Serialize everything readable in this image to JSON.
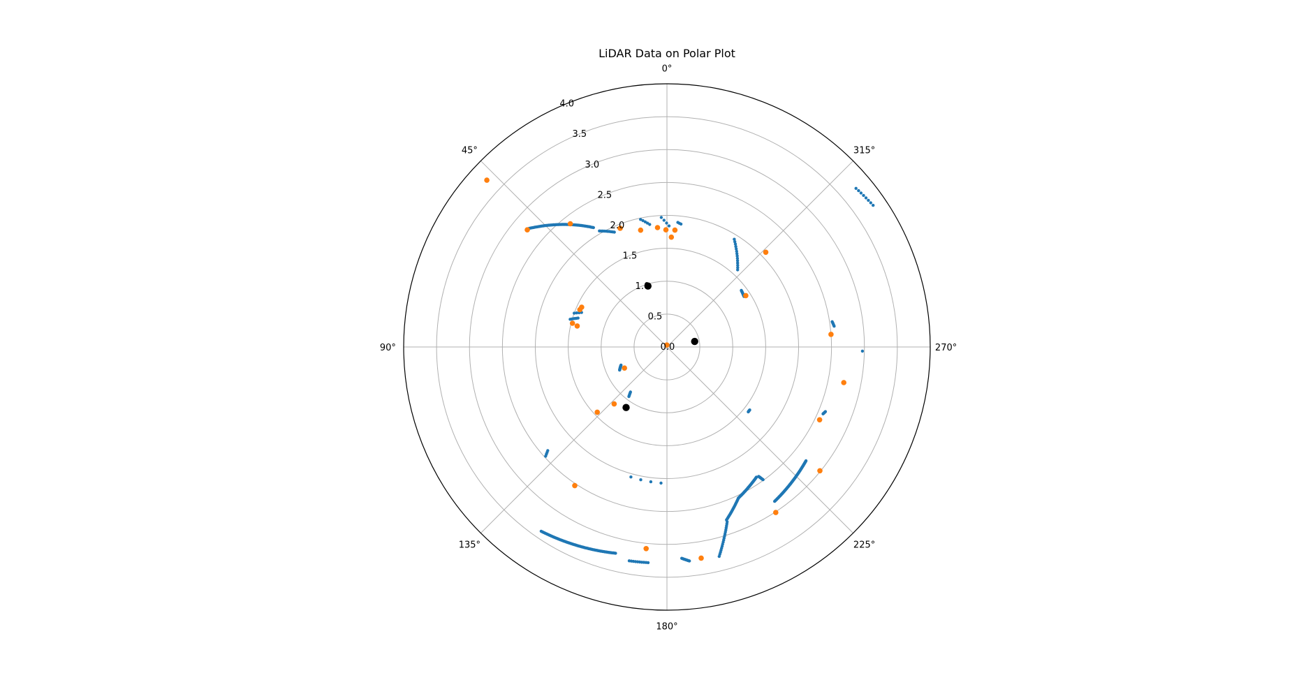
{
  "chart_data": {
    "type": "scatter",
    "projection": "polar",
    "title": "LiDAR Data on Polar Plot",
    "theta_zero_location": "N",
    "theta_direction": "counterclockwise",
    "rmax": 4.0,
    "r_ticks": [
      "0.0",
      "0.5",
      "1.0",
      "1.5",
      "2.0",
      "2.5",
      "3.0",
      "3.5",
      "4.0"
    ],
    "r_tick_values": [
      0,
      0.5,
      1.0,
      1.5,
      2.0,
      2.5,
      3.0,
      3.5,
      4.0
    ],
    "theta_ticks": [
      "0°",
      "45°",
      "90°",
      "135°",
      "180°",
      "225°",
      "270°",
      "315°"
    ],
    "theta_tick_values": [
      0,
      45,
      90,
      135,
      180,
      225,
      270,
      315
    ],
    "grid": true,
    "colors": {
      "scan": "#1f77b4",
      "features": "#ff7f0e",
      "markers": "#000000",
      "grid": "#b0b0b0",
      "frame": "#000000"
    },
    "series": [
      {
        "marker_size": 2.2,
        "segments": [
          {
            "theta": [
              49.5,
              31.6
            ],
            "r": [
              2.77,
              2.13
            ],
            "n": 55
          },
          {
            "theta": [
              30.2,
              24.6
            ],
            "r": [
              2.04,
              1.92
            ],
            "n": 10
          },
          {
            "theta": [
              11.7,
              8.0
            ],
            "r": [
              1.98,
              1.88
            ],
            "n": 5
          },
          {
            "theta": [
              2.5,
              -1.0
            ],
            "r": [
              1.97,
              1.84
            ],
            "n": 4
          },
          {
            "theta": [
              -5.0,
              -6.5
            ],
            "r": [
              1.9,
              1.88
            ],
            "n": 3
          },
          {
            "theta": [
              -32.0,
              -42.5
            ],
            "r": [
              1.93,
              1.59
            ],
            "n": 14
          },
          {
            "theta": [
              -52.7,
              -56.8
            ],
            "r": [
              1.42,
              1.4
            ],
            "n": 16
          },
          {
            "theta": [
              -50.0,
              -55.5
            ],
            "r": [
              3.75,
              3.8
            ],
            "n": 8
          },
          {
            "theta": [
              -81.3,
              -82.9
            ],
            "r": [
              2.54,
              2.56
            ],
            "n": 6
          },
          {
            "theta": [
              -91.2,
              -91.2
            ],
            "r": [
              2.97,
              2.97
            ],
            "n": 1
          },
          {
            "theta": [
              -112.2,
              -113.2
            ],
            "r": [
              2.6,
              2.58
            ],
            "n": 8
          },
          {
            "theta": [
              -129.3,
              -145.1
            ],
            "r": [
              2.73,
              2.86
            ],
            "n": 85
          },
          {
            "theta": [
              -144.1,
              -144.7
            ],
            "r": [
              2.49,
              2.41
            ],
            "n": 12
          },
          {
            "theta": [
              -145.5,
              -154.7
            ],
            "r": [
              2.4,
              2.54
            ],
            "n": 45
          },
          {
            "theta": [
              -154.7,
              -161.0
            ],
            "r": [
              2.54,
              2.78
            ],
            "n": 25
          },
          {
            "theta": [
              -161.0,
              -166.0
            ],
            "r": [
              2.81,
              3.28
            ],
            "n": 18
          },
          {
            "theta": [
              -127.3,
              -128.6
            ],
            "r": [
              1.58,
              1.58
            ],
            "n": 6
          },
          {
            "theta": [
              164.5,
              177.5
            ],
            "r": [
              2.05,
              2.07
            ],
            "n": 4
          },
          {
            "theta": [
              -174.0,
              -176.0
            ],
            "r": [
              3.27,
              3.22
            ],
            "n": 12
          },
          {
            "theta": [
              175.0,
              170.0
            ],
            "r": [
              3.29,
              3.3
            ],
            "n": 10
          },
          {
            "theta": [
              166.0,
              145.7
            ],
            "r": [
              3.23,
              3.39
            ],
            "n": 72
          },
          {
            "theta": [
              132.0,
              131.0
            ],
            "r": [
              2.48,
              2.4
            ],
            "n": 4
          },
          {
            "theta": [
              142.5,
              141.0
            ],
            "r": [
              0.95,
              0.88
            ],
            "n": 6
          },
          {
            "theta": [
              111.5,
              116.0
            ],
            "r": [
              0.75,
              0.8
            ],
            "n": 16
          },
          {
            "theta": [
              68.0,
              70.0
            ],
            "r": [
              1.4,
              1.5
            ],
            "n": 4
          },
          {
            "theta": [
              72.0,
              74.0
            ],
            "r": [
              1.42,
              1.53
            ],
            "n": 6
          }
        ]
      },
      {
        "marker_size": 3.8,
        "theta": [
          2.0,
          47.2,
          38.1,
          21.5,
          12.7,
          4.5,
          0.5,
          -3.9,
          -2.3,
          -46.2,
          -56.9,
          -85.6,
          -101.4,
          -115.5,
          -129.0,
          -146.7,
          -170.8,
          174.1,
          146.4,
          133.1,
          137.2,
          116.4,
          76.8,
          75.9,
          65.0,
          66.8,
          50.0
        ],
        "r": [
          0.03,
          3.73,
          2.38,
          1.94,
          1.82,
          1.82,
          1.78,
          1.78,
          1.67,
          2.08,
          1.43,
          2.5,
          2.74,
          2.57,
          2.99,
          3.01,
          3.25,
          3.08,
          2.53,
          1.45,
          1.18,
          0.72,
          1.4,
          1.48,
          1.43,
          1.44,
          2.77
        ]
      },
      {
        "marker_size": 5.2,
        "theta": [
          17.3,
          -78.7,
          146.0
        ],
        "r": [
          0.97,
          0.43,
          1.11
        ]
      }
    ]
  }
}
